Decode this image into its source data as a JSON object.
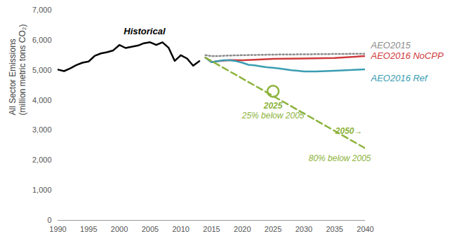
{
  "chart_data": {
    "type": "line",
    "ylabel": "All Sector Emissions\n(million metric tons CO₂)",
    "xlim": [
      1990,
      2040
    ],
    "xticks": [
      1990,
      1995,
      2000,
      2005,
      2010,
      2015,
      2020,
      2025,
      2030,
      2035,
      2040
    ],
    "ylim": [
      0,
      7000
    ],
    "yticks": [
      0,
      {
        "value": 1000,
        "label": "1,000"
      },
      {
        "value": 2000,
        "label": "2,000"
      },
      {
        "value": 3000,
        "label": "3,000"
      },
      {
        "value": 4000,
        "label": "4,000"
      },
      {
        "value": 5000,
        "label": "5,000"
      },
      {
        "value": 6000,
        "label": "6,000"
      },
      {
        "value": 7000,
        "label": "7,000"
      }
    ],
    "grid": false,
    "series": [
      {
        "name": "Historical",
        "color": "#000000",
        "line_style": "solid",
        "x": [
          1990,
          1991,
          1992,
          1993,
          1994,
          1995,
          1996,
          1997,
          1998,
          1999,
          2000,
          2001,
          2002,
          2003,
          2004,
          2005,
          2006,
          2007,
          2008,
          2009,
          2010,
          2011,
          2012,
          2013
        ],
        "values": [
          5020,
          4970,
          5060,
          5170,
          5250,
          5290,
          5480,
          5560,
          5600,
          5660,
          5840,
          5740,
          5780,
          5820,
          5900,
          5930,
          5840,
          5930,
          5750,
          5310,
          5500,
          5390,
          5150,
          5300
        ]
      },
      {
        "name": "AEO2015",
        "color": "#8c8c8c",
        "line_style": "dotted",
        "x": [
          2014,
          2015,
          2016,
          2018,
          2020,
          2025,
          2030,
          2035,
          2040
        ],
        "values": [
          5500,
          5470,
          5470,
          5490,
          5500,
          5520,
          5530,
          5540,
          5550
        ]
      },
      {
        "name": "AEO2016 NoCPP",
        "color": "#d0393b",
        "line_style": "solid",
        "x": [
          2014,
          2015,
          2016,
          2018,
          2020,
          2022,
          2025,
          2030,
          2035,
          2040
        ],
        "values": [
          5420,
          5270,
          5300,
          5340,
          5330,
          5350,
          5380,
          5390,
          5410,
          5470
        ]
      },
      {
        "name": "AEO2016 Ref",
        "color": "#3a9db2",
        "line_style": "solid",
        "x": [
          2014,
          2015,
          2016,
          2017,
          2018,
          2019,
          2020,
          2021,
          2022,
          2023,
          2024,
          2025,
          2026,
          2027,
          2028,
          2029,
          2030,
          2032,
          2035,
          2038,
          2040
        ],
        "values": [
          5420,
          5270,
          5300,
          5330,
          5330,
          5300,
          5250,
          5180,
          5160,
          5130,
          5100,
          5080,
          5060,
          5030,
          5000,
          4980,
          4960,
          4960,
          4980,
          5010,
          5030
        ]
      },
      {
        "color": "#8cb33c",
        "line_style": "dashed",
        "x": [
          2014,
          2040
        ],
        "values": [
          5420,
          2400
        ]
      },
      {
        "type": "scatter",
        "marker": "circle",
        "color": "#8cb33c",
        "x": [
          2025
        ],
        "values": [
          4300
        ]
      }
    ],
    "annotations": [
      {
        "title": "2025",
        "text": "25% below 2005",
        "x": 2025,
        "y": 4300,
        "color": "#8cb33c"
      },
      {
        "title": "2050→",
        "text": "80% below 2005",
        "x": 2040,
        "y": 2400,
        "color": "#8cb33c"
      }
    ]
  }
}
